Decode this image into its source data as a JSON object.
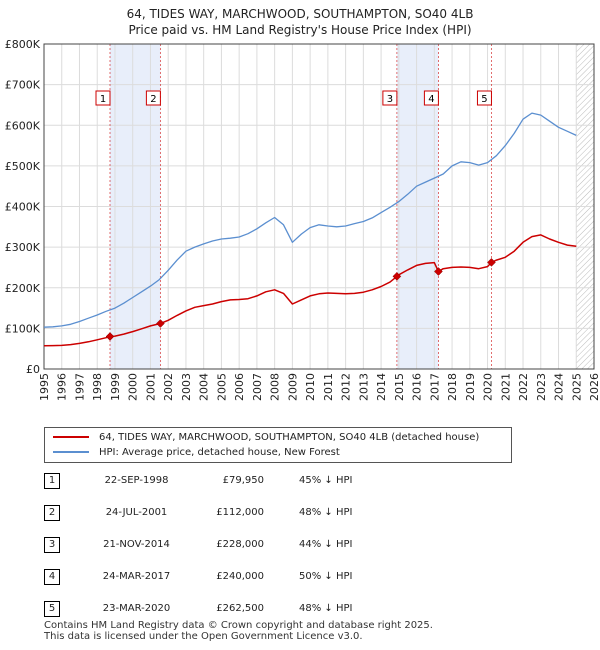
{
  "title_line1": "64, TIDES WAY, MARCHWOOD, SOUTHAMPTON, SO40 4LB",
  "title_line2": "Price paid vs. HM Land Registry's House Price Index (HPI)",
  "legend": {
    "red_label": "64, TIDES WAY, MARCHWOOD, SOUTHAMPTON, SO40 4LB (detached house)",
    "blue_label": "HPI: Average price, detached house, New Forest"
  },
  "colors": {
    "red": "#cc0000",
    "blue": "#5b8fd0",
    "band": "#e8eefa"
  },
  "sales": [
    {
      "num": "1",
      "date": "22-SEP-1998",
      "price": "£79,950",
      "hpi": "45% ↓ HPI"
    },
    {
      "num": "2",
      "date": "24-JUL-2001",
      "price": "£112,000",
      "hpi": "48% ↓ HPI"
    },
    {
      "num": "3",
      "date": "21-NOV-2014",
      "price": "£228,000",
      "hpi": "44% ↓ HPI"
    },
    {
      "num": "4",
      "date": "24-MAR-2017",
      "price": "£240,000",
      "hpi": "50% ↓ HPI"
    },
    {
      "num": "5",
      "date": "23-MAR-2020",
      "price": "£262,500",
      "hpi": "48% ↓ HPI"
    }
  ],
  "footer_line1": "Contains HM Land Registry data © Crown copyright and database right 2025.",
  "footer_line2": "This data is licensed under the Open Government Licence v3.0.",
  "chart_data": {
    "type": "line",
    "title": "64, TIDES WAY, MARCHWOOD, SOUTHAMPTON, SO40 4LB",
    "subtitle": "Price paid vs. HM Land Registry's House Price Index (HPI)",
    "xlabel": "",
    "ylabel": "",
    "xlim": [
      1995,
      2026
    ],
    "ylim": [
      0,
      800000
    ],
    "y_ticks": [
      0,
      100000,
      200000,
      300000,
      400000,
      500000,
      600000,
      700000,
      800000
    ],
    "y_tick_labels": [
      "£0",
      "£100K",
      "£200K",
      "£300K",
      "£400K",
      "£500K",
      "£600K",
      "£700K",
      "£800K"
    ],
    "x_ticks": [
      1995,
      1996,
      1997,
      1998,
      1999,
      2000,
      2001,
      2002,
      2003,
      2004,
      2005,
      2006,
      2007,
      2008,
      2009,
      2010,
      2011,
      2012,
      2013,
      2014,
      2015,
      2016,
      2017,
      2018,
      2019,
      2020,
      2021,
      2022,
      2023,
      2024,
      2025,
      2026
    ],
    "x_tick_labels": [
      "1995",
      "1996",
      "1997",
      "1998",
      "1999",
      "2000",
      "2001",
      "2002",
      "2003",
      "2004",
      "2005",
      "2006",
      "2007",
      "2008",
      "2009",
      "2010",
      "2011",
      "2012",
      "2013",
      "2014",
      "2015",
      "2016",
      "2017",
      "2018",
      "2019",
      "2020",
      "2021",
      "2022",
      "2023",
      "2024",
      "2025",
      "2026"
    ],
    "grid": true,
    "shaded_bands": [
      [
        1998.72,
        2001.56
      ],
      [
        2014.89,
        2017.23
      ]
    ],
    "sale_markers": [
      {
        "label": "1",
        "x": 1998.72,
        "y": 79950
      },
      {
        "label": "2",
        "x": 2001.56,
        "y": 112000
      },
      {
        "label": "3",
        "x": 2014.89,
        "y": 228000
      },
      {
        "label": "4",
        "x": 2017.23,
        "y": 240000
      },
      {
        "label": "5",
        "x": 2020.22,
        "y": 262500
      }
    ],
    "future_hatch_from": 2025.0,
    "series": [
      {
        "name": "64, TIDES WAY, MARCHWOOD, SOUTHAMPTON, SO40 4LB (detached house)",
        "color": "#cc0000",
        "x": [
          1995,
          1995.5,
          1996,
          1996.5,
          1997,
          1997.5,
          1998,
          1998.5,
          1998.72,
          1999,
          1999.5,
          2000,
          2000.5,
          2001,
          2001.56,
          2002,
          2002.5,
          2003,
          2003.5,
          2004,
          2004.5,
          2005,
          2005.5,
          2006,
          2006.5,
          2007,
          2007.5,
          2008,
          2008.5,
          2009,
          2009.5,
          2010,
          2010.5,
          2011,
          2011.5,
          2012,
          2012.5,
          2013,
          2013.5,
          2014,
          2014.5,
          2014.89,
          2015,
          2015.5,
          2016,
          2016.5,
          2017,
          2017.23,
          2017.5,
          2018,
          2018.5,
          2019,
          2019.5,
          2020,
          2020.22,
          2020.5,
          2021,
          2021.5,
          2022,
          2022.5,
          2023,
          2023.5,
          2024,
          2024.5,
          2025
        ],
        "y": [
          57000,
          57500,
          58000,
          60000,
          63000,
          67000,
          72000,
          77000,
          79950,
          81000,
          86000,
          92000,
          99000,
          106000,
          112000,
          120000,
          132000,
          143000,
          152000,
          156000,
          160000,
          166000,
          170000,
          171000,
          173000,
          180000,
          190000,
          195000,
          186000,
          160000,
          170000,
          180000,
          185000,
          187000,
          186000,
          185000,
          186000,
          189000,
          195000,
          203000,
          214000,
          228000,
          232000,
          244000,
          255000,
          260000,
          262000,
          240000,
          247000,
          250000,
          251000,
          250000,
          247000,
          252000,
          262500,
          268000,
          275000,
          290000,
          312000,
          326000,
          330000,
          320000,
          312000,
          305000,
          302000
        ]
      },
      {
        "name": "HPI: Average price, detached house, New Forest",
        "color": "#5b8fd0",
        "x": [
          1995,
          1995.5,
          1996,
          1996.5,
          1997,
          1997.5,
          1998,
          1998.5,
          1999,
          1999.5,
          2000,
          2000.5,
          2001,
          2001.5,
          2002,
          2002.5,
          2003,
          2003.5,
          2004,
          2004.5,
          2005,
          2005.5,
          2006,
          2006.5,
          2007,
          2007.5,
          2008,
          2008.5,
          2009,
          2009.5,
          2010,
          2010.5,
          2011,
          2011.5,
          2012,
          2012.5,
          2013,
          2013.5,
          2014,
          2014.5,
          2015,
          2015.5,
          2016,
          2016.5,
          2017,
          2017.5,
          2018,
          2018.5,
          2019,
          2019.5,
          2020,
          2020.5,
          2021,
          2021.5,
          2022,
          2022.5,
          2023,
          2023.5,
          2024,
          2024.5,
          2025
        ],
        "y": [
          103000,
          104000,
          106000,
          110000,
          117000,
          125000,
          133000,
          142000,
          150000,
          162000,
          176000,
          190000,
          204000,
          220000,
          243000,
          268000,
          290000,
          300000,
          308000,
          315000,
          320000,
          322000,
          325000,
          333000,
          345000,
          360000,
          373000,
          355000,
          312000,
          332000,
          348000,
          355000,
          352000,
          350000,
          352000,
          358000,
          363000,
          372000,
          385000,
          398000,
          412000,
          430000,
          450000,
          460000,
          470000,
          480000,
          500000,
          510000,
          508000,
          502000,
          508000,
          525000,
          550000,
          580000,
          615000,
          630000,
          625000,
          610000,
          595000,
          585000,
          575000
        ]
      }
    ]
  }
}
